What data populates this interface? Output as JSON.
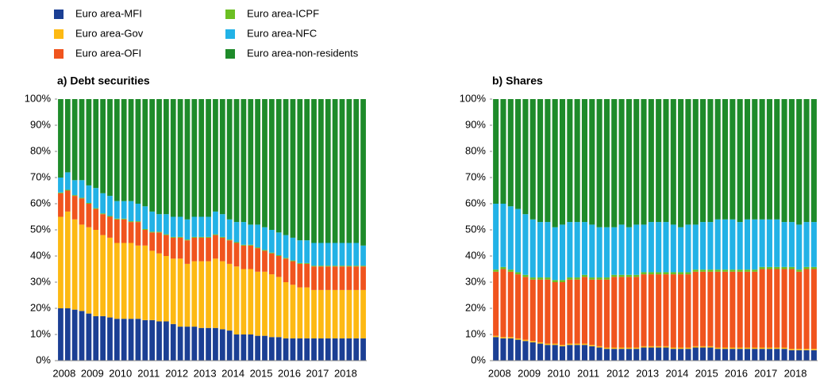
{
  "chart_data": [
    {
      "type": "stacked_bar",
      "title": "a) Debt securities",
      "categories": [
        "2008",
        null,
        null,
        null,
        "2009",
        null,
        null,
        null,
        "2010",
        null,
        null,
        null,
        "2011",
        null,
        null,
        null,
        "2012",
        null,
        null,
        null,
        "2013",
        null,
        null,
        null,
        "2014",
        null,
        null,
        null,
        "2015",
        null,
        null,
        null,
        "2016",
        null,
        null,
        null,
        "2017",
        null,
        null,
        null,
        "2018",
        null,
        null,
        null
      ],
      "ylim": [
        0,
        100
      ],
      "yticks": [
        {
          "value": 0,
          "label": "0%"
        },
        {
          "value": 10,
          "label": "10%"
        },
        {
          "value": 20,
          "label": "20%"
        },
        {
          "value": 30,
          "label": "30%"
        },
        {
          "value": 40,
          "label": "40%"
        },
        {
          "value": 50,
          "label": "50%"
        },
        {
          "value": 60,
          "label": "60%"
        },
        {
          "value": 70,
          "label": "70%"
        },
        {
          "value": 80,
          "label": "80%"
        },
        {
          "value": 90,
          "label": "90%"
        },
        {
          "value": 100,
          "label": "100%"
        }
      ],
      "series": [
        {
          "name": "Euro area-MFI",
          "color": "#1b3f94",
          "values": [
            20,
            20,
            19.5,
            19,
            18,
            17,
            17,
            16.5,
            16,
            16,
            16,
            16,
            15.5,
            15.5,
            15,
            15,
            14,
            13,
            13,
            13,
            12.5,
            12.5,
            12.5,
            12,
            11.5,
            10,
            10,
            10,
            9.5,
            9.5,
            9,
            9,
            8.5,
            8.5,
            8.5,
            8.5,
            8.5,
            8.5,
            8.5,
            8.5,
            8.5,
            8.5,
            8.5,
            8.5
          ]
        },
        {
          "name": "Euro area-Gov",
          "color": "#fdb913",
          "values": [
            35,
            37,
            34.5,
            33,
            33,
            33,
            31,
            30.5,
            29,
            29,
            29,
            28,
            28.5,
            26.5,
            26,
            25,
            25,
            26,
            24,
            25,
            25.5,
            25.5,
            26.5,
            26,
            25.5,
            26,
            25,
            25,
            24.5,
            24.5,
            24,
            23,
            21.5,
            20.5,
            19.5,
            19.5,
            18.5,
            18.5,
            18.5,
            18.5,
            18.5,
            18.5,
            18.5,
            18.5
          ]
        },
        {
          "name": "Euro area-OFI",
          "color": "#f0541e",
          "values": [
            9,
            8,
            9,
            10,
            9,
            8,
            8,
            8,
            9,
            9,
            8,
            9,
            6,
            7,
            8,
            8,
            8,
            8,
            9,
            9,
            9,
            9,
            9,
            9,
            9,
            9,
            9,
            9,
            9,
            8,
            8,
            8,
            9,
            9,
            9,
            9,
            9,
            9,
            9,
            9,
            9,
            9,
            9,
            9
          ]
        },
        {
          "name": "Euro area-ICPF",
          "color": "#6bbf23",
          "values": [
            0.3,
            0.3,
            0.3,
            0.3,
            0.3,
            0.3,
            0.3,
            0.3,
            0.3,
            0.3,
            0.3,
            0.3,
            0.3,
            0.3,
            0.3,
            0.3,
            0.3,
            0.3,
            0.3,
            0.3,
            0.3,
            0.3,
            0.3,
            0.3,
            0.3,
            0.3,
            0.3,
            0.3,
            0.3,
            0.3,
            0.3,
            0.3,
            0.3,
            0.3,
            0.3,
            0.3,
            0.3,
            0.3,
            0.3,
            0.3,
            0.3,
            0.3,
            0.3,
            0.3
          ]
        },
        {
          "name": "Euro area-NFC",
          "color": "#22b2e6",
          "values": [
            5.7,
            6.7,
            5.7,
            6.7,
            6.7,
            7.7,
            7.7,
            7.7,
            6.7,
            6.7,
            7.7,
            6.7,
            8.7,
            7.7,
            6.7,
            7.7,
            7.7,
            7.7,
            7.7,
            7.7,
            7.7,
            7.7,
            8.7,
            8.7,
            7.7,
            7.7,
            8.7,
            7.7,
            8.7,
            8.7,
            8.7,
            8.7,
            8.7,
            8.7,
            8.7,
            8.7,
            8.7,
            8.7,
            8.7,
            8.7,
            8.7,
            8.7,
            8.7,
            7.7
          ]
        },
        {
          "name": "Euro area-non-residents",
          "color": "#1e8b2a",
          "values": [
            30,
            28,
            31,
            31,
            33,
            34,
            36,
            37,
            39,
            39,
            39,
            40,
            41,
            43,
            44,
            44,
            45,
            45,
            46,
            45,
            45,
            45,
            43,
            44,
            46,
            47,
            47,
            48,
            48,
            49,
            50,
            51,
            52,
            53,
            54,
            54,
            55,
            55,
            55,
            55,
            55,
            55,
            55,
            56
          ]
        }
      ]
    },
    {
      "type": "stacked_bar",
      "title": "b) Shares",
      "categories": [
        "2008",
        null,
        null,
        null,
        "2009",
        null,
        null,
        null,
        "2010",
        null,
        null,
        null,
        "2011",
        null,
        null,
        null,
        "2012",
        null,
        null,
        null,
        "2013",
        null,
        null,
        null,
        "2014",
        null,
        null,
        null,
        "2015",
        null,
        null,
        null,
        "2016",
        null,
        null,
        null,
        "2017",
        null,
        null,
        null,
        "2018",
        null,
        null,
        null
      ],
      "ylim": [
        0,
        100
      ],
      "yticks": [
        {
          "value": 0,
          "label": "0%"
        },
        {
          "value": 10,
          "label": "10%"
        },
        {
          "value": 20,
          "label": "20%"
        },
        {
          "value": 30,
          "label": "30%"
        },
        {
          "value": 40,
          "label": "40%"
        },
        {
          "value": 50,
          "label": "50%"
        },
        {
          "value": 60,
          "label": "60%"
        },
        {
          "value": 70,
          "label": "70%"
        },
        {
          "value": 80,
          "label": "80%"
        },
        {
          "value": 90,
          "label": "90%"
        },
        {
          "value": 100,
          "label": "100%"
        }
      ],
      "series": [
        {
          "name": "Euro area-MFI",
          "color": "#1b3f94",
          "values": [
            9,
            8.5,
            8.5,
            8,
            7.5,
            7,
            6.5,
            6,
            6,
            5.5,
            6,
            6,
            6,
            5.5,
            5,
            4.5,
            4.5,
            4.5,
            4.5,
            4.5,
            5,
            5,
            5,
            5,
            4.5,
            4.5,
            4.5,
            5,
            5,
            5,
            4.5,
            4.5,
            4.5,
            4.5,
            4.5,
            4.5,
            4.5,
            4.5,
            4.5,
            4.5,
            4,
            4,
            4,
            4
          ]
        },
        {
          "name": "Euro area-Gov",
          "color": "#fdb913",
          "values": [
            0.5,
            0.5,
            0.5,
            0.5,
            0.5,
            0.5,
            0.5,
            0.5,
            0.5,
            0.5,
            0.5,
            0.5,
            0.5,
            0.5,
            0.5,
            0.5,
            0.5,
            0.5,
            0.5,
            0.5,
            0.5,
            0.5,
            0.5,
            0.5,
            0.5,
            0.5,
            0.5,
            0.5,
            0.5,
            0.5,
            0.5,
            0.5,
            0.5,
            0.5,
            0.5,
            0.5,
            0.5,
            0.5,
            0.5,
            0.5,
            0.5,
            0.5,
            0.5,
            0.5
          ]
        },
        {
          "name": "Euro area-OFI",
          "color": "#f0541e",
          "values": [
            24.5,
            26,
            25,
            24.5,
            24,
            23.5,
            24,
            24.5,
            23.5,
            24,
            24.5,
            24.5,
            25.5,
            25,
            25.5,
            26,
            27,
            27,
            27,
            27,
            27.5,
            27.5,
            27.5,
            27.5,
            28,
            28,
            28,
            28.5,
            28.5,
            28.5,
            29,
            29,
            29,
            29,
            29,
            29,
            30,
            30,
            30,
            30,
            30.5,
            29.5,
            30.5,
            30.5
          ]
        },
        {
          "name": "Euro area-ICPF",
          "color": "#6bbf23",
          "values": [
            0.8,
            0.8,
            0.8,
            0.8,
            0.8,
            0.8,
            0.8,
            0.8,
            0.8,
            0.8,
            0.8,
            0.8,
            0.8,
            0.8,
            0.8,
            0.8,
            0.8,
            0.8,
            0.8,
            0.8,
            0.8,
            0.8,
            0.8,
            0.8,
            0.8,
            0.8,
            0.8,
            0.8,
            0.8,
            0.8,
            0.8,
            0.8,
            0.8,
            0.8,
            0.8,
            0.8,
            0.8,
            0.8,
            0.8,
            0.8,
            0.8,
            0.8,
            0.8,
            0.8
          ]
        },
        {
          "name": "Euro area-NFC",
          "color": "#22b2e6",
          "values": [
            25.2,
            24.2,
            24.2,
            24.2,
            23.2,
            22.2,
            21.2,
            21.2,
            20.2,
            21.2,
            21.2,
            21.2,
            20.2,
            20.2,
            19.2,
            19.2,
            18.2,
            19.2,
            18.2,
            19.2,
            18.2,
            19.2,
            19.2,
            19.2,
            18.2,
            17.2,
            18.2,
            17.2,
            18.2,
            18.2,
            19.2,
            19.2,
            19.2,
            18.2,
            19.2,
            19.2,
            18.2,
            18.2,
            18.2,
            17.2,
            17.2,
            17.2,
            17.2,
            17.2
          ]
        },
        {
          "name": "Euro area-non-residents",
          "color": "#1e8b2a",
          "values": [
            40,
            40,
            41,
            42,
            44,
            46,
            47,
            47,
            49,
            48,
            47,
            47,
            47,
            48,
            49,
            49,
            49,
            48,
            49,
            48,
            48,
            47,
            47,
            47,
            48,
            49,
            48,
            48,
            47,
            47,
            46,
            46,
            46,
            47,
            46,
            46,
            46,
            46,
            46,
            47,
            47,
            48,
            47,
            47
          ]
        }
      ]
    }
  ]
}
